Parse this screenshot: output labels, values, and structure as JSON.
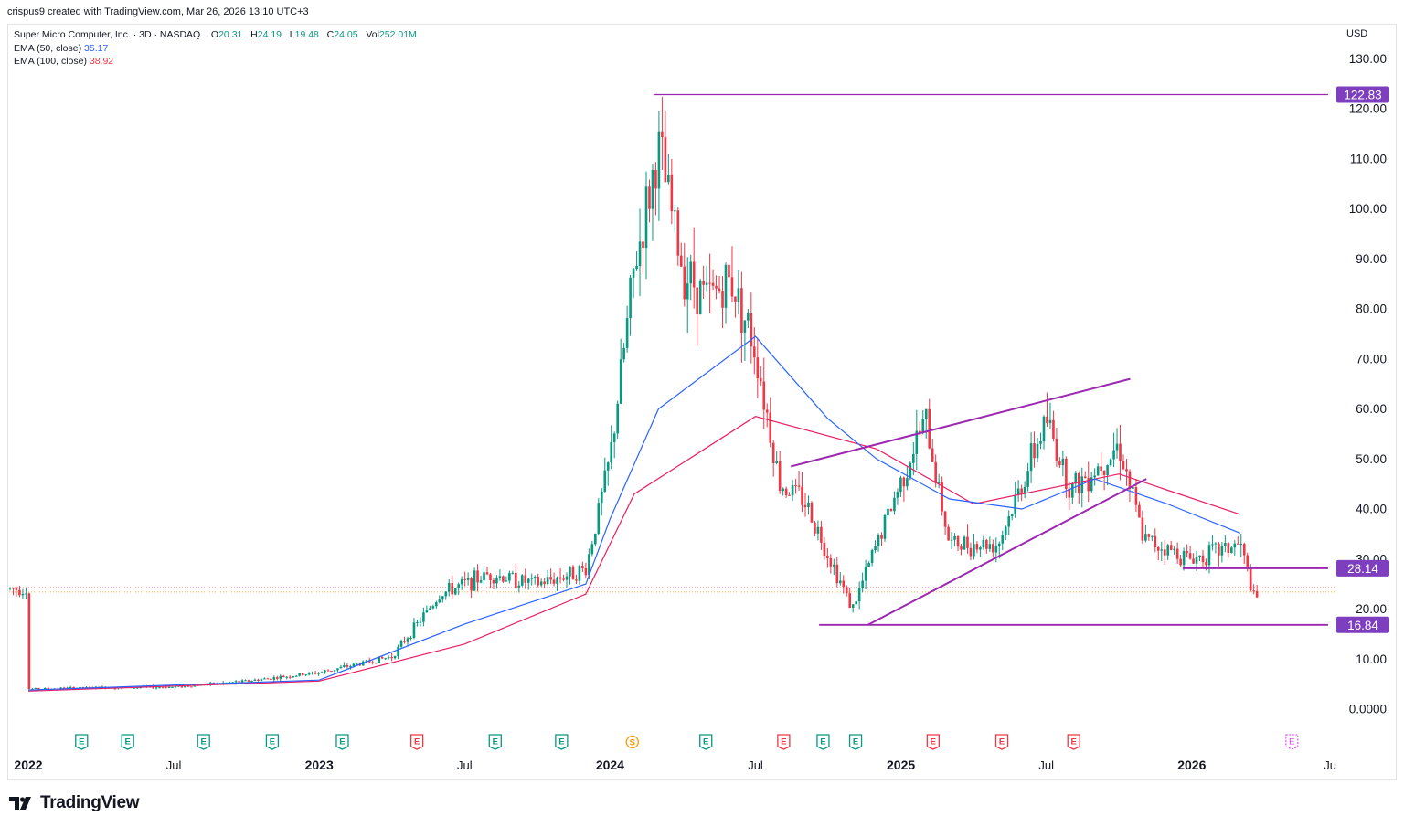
{
  "header": {
    "created_line": "crispus9 created with TradingView.com, Mar 26, 2026 13:10 UTC+3",
    "symbol_line": "Super Micro Computer, Inc. · 3D · NASDAQ",
    "ohlc": {
      "O_label": "O",
      "O": "20.31",
      "H_label": "H",
      "H": "24.19",
      "L_label": "L",
      "L": "19.48",
      "C_label": "C",
      "C": "24.05",
      "Vol_label": "Vol",
      "Vol": "252.01M"
    },
    "ema50_label": "EMA (50, close)",
    "ema50_value": "35.17",
    "ema100_label": "EMA (100, close)",
    "ema100_value": "38.92",
    "currency": "USD"
  },
  "colors": {
    "up": "#089981",
    "down": "#f23645",
    "ema50": "#2962ff",
    "ema100": "#e91e63",
    "drawing": "#9c27b0",
    "label_bg": "#7e3fbf"
  },
  "chart_data": {
    "type": "candlestick",
    "y_axis": {
      "min": 0,
      "max": 130,
      "ticks": [
        "0.0000",
        "10.00",
        "20.00",
        "30.00",
        "40.00",
        "50.00",
        "60.00",
        "70.00",
        "80.00",
        "90.00",
        "100.00",
        "110.00",
        "120.00",
        "130.00"
      ]
    },
    "x_axis": {
      "ticks": [
        "2022",
        "Jul",
        "2023",
        "Jul",
        "2024",
        "Jul",
        "2025",
        "Jul",
        "2026",
        "Ju"
      ]
    },
    "price_labels": [
      "122.83",
      "28.14",
      "16.84"
    ],
    "events": [
      "E",
      "E",
      "E",
      "E",
      "E",
      "E",
      "E",
      "E",
      "S",
      "E",
      "E",
      "E",
      "E",
      "E",
      "E",
      "E"
    ],
    "upcoming_event": "E",
    "approx_close_path": [
      [
        "2022-01",
        4.0
      ],
      [
        "2022-04",
        4.3
      ],
      [
        "2022-07",
        4.4
      ],
      [
        "2022-10",
        5.6
      ],
      [
        "2023-01",
        7.3
      ],
      [
        "2023-04",
        10.5
      ],
      [
        "2023-06",
        23
      ],
      [
        "2023-08",
        27
      ],
      [
        "2023-10",
        25
      ],
      [
        "2023-12",
        28
      ],
      [
        "2024-01",
        50
      ],
      [
        "2024-02",
        88
      ],
      [
        "2024-03",
        112
      ],
      [
        "2024-04",
        88
      ],
      [
        "2024-05",
        82
      ],
      [
        "2024-06",
        86
      ],
      [
        "2024-07",
        72
      ],
      [
        "2024-08",
        45
      ],
      [
        "2024-09",
        42
      ],
      [
        "2024-11",
        20
      ],
      [
        "2024-12",
        33
      ],
      [
        "2025-02",
        58
      ],
      [
        "2025-03",
        33
      ],
      [
        "2025-05",
        33
      ],
      [
        "2025-06",
        45
      ],
      [
        "2025-07",
        58
      ],
      [
        "2025-08",
        44
      ],
      [
        "2025-09",
        48
      ],
      [
        "2025-10",
        53
      ],
      [
        "2025-11",
        34
      ],
      [
        "2026-01",
        30
      ],
      [
        "2026-03",
        33
      ],
      [
        "2026-03-20",
        21
      ],
      [
        "2026-03-26",
        24.05
      ]
    ],
    "ema50_path": [
      [
        "2022-01",
        3.8
      ],
      [
        "2023-01",
        5.8
      ],
      [
        "2023-07",
        17
      ],
      [
        "2023-12",
        25
      ],
      [
        "2024-01",
        38
      ],
      [
        "2024-03",
        60
      ],
      [
        "2024-07",
        74.5
      ],
      [
        "2024-10",
        58
      ],
      [
        "2024-12",
        50
      ],
      [
        "2025-03",
        42
      ],
      [
        "2025-06",
        40
      ],
      [
        "2025-09",
        46
      ],
      [
        "2025-12",
        41
      ],
      [
        "2026-03",
        35.17
      ]
    ],
    "ema100_path": [
      [
        "2022-01",
        3.6
      ],
      [
        "2023-01",
        5.6
      ],
      [
        "2023-07",
        13
      ],
      [
        "2023-12",
        23
      ],
      [
        "2024-02",
        43
      ],
      [
        "2024-07",
        58.5
      ],
      [
        "2024-12",
        52
      ],
      [
        "2025-04",
        41
      ],
      [
        "2025-10",
        47
      ],
      [
        "2026-03",
        38.92
      ]
    ]
  }
}
